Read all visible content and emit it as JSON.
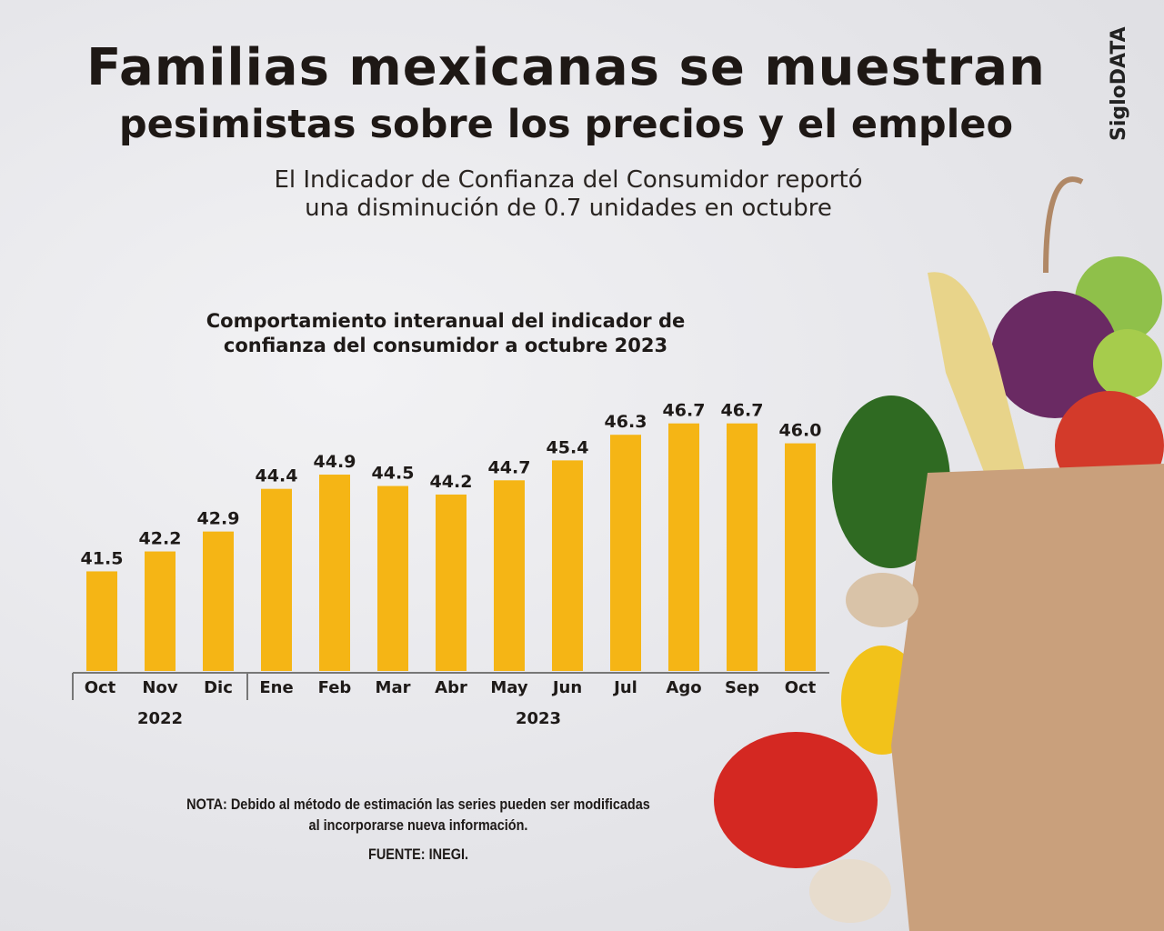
{
  "header": {
    "title_line1": "Familias mexicanas se muestran",
    "title_line2": "pesimistas sobre los precios y el empleo",
    "subtitle_line1": "El Indicador de Confianza del Consumidor reportó",
    "subtitle_line2": "una disminución de 0.7 unidades en octubre",
    "brand": "SigloDATA"
  },
  "chart_data": {
    "type": "bar",
    "title_line1": "Comportamiento interanual del indicador de",
    "title_line2": "confianza del consumidor a octubre 2023",
    "categories": [
      "Oct",
      "Nov",
      "Dic",
      "Ene",
      "Feb",
      "Mar",
      "Abr",
      "May",
      "Jun",
      "Jul",
      "Ago",
      "Sep",
      "Oct"
    ],
    "values": [
      41.5,
      42.2,
      42.9,
      44.4,
      44.9,
      44.5,
      44.2,
      44.7,
      45.4,
      46.3,
      46.7,
      46.7,
      46.0
    ],
    "value_labels": [
      "41.5",
      "42.2",
      "42.9",
      "44.4",
      "44.9",
      "44.5",
      "44.2",
      "44.7",
      "45.4",
      "46.3",
      "46.7",
      "46.7",
      "46.0"
    ],
    "year_groups": [
      {
        "label": "2022",
        "count": 3
      },
      {
        "label": "2023",
        "count": 10
      }
    ],
    "ylim": [
      38,
      48
    ],
    "grid": false,
    "bar_color": "#f5b515"
  },
  "footer": {
    "note_line1": "NOTA: Debido al método de estimación las series pueden ser modificadas",
    "note_line2": "al incorporarse nueva información.",
    "source": "FUENTE: INEGI."
  }
}
